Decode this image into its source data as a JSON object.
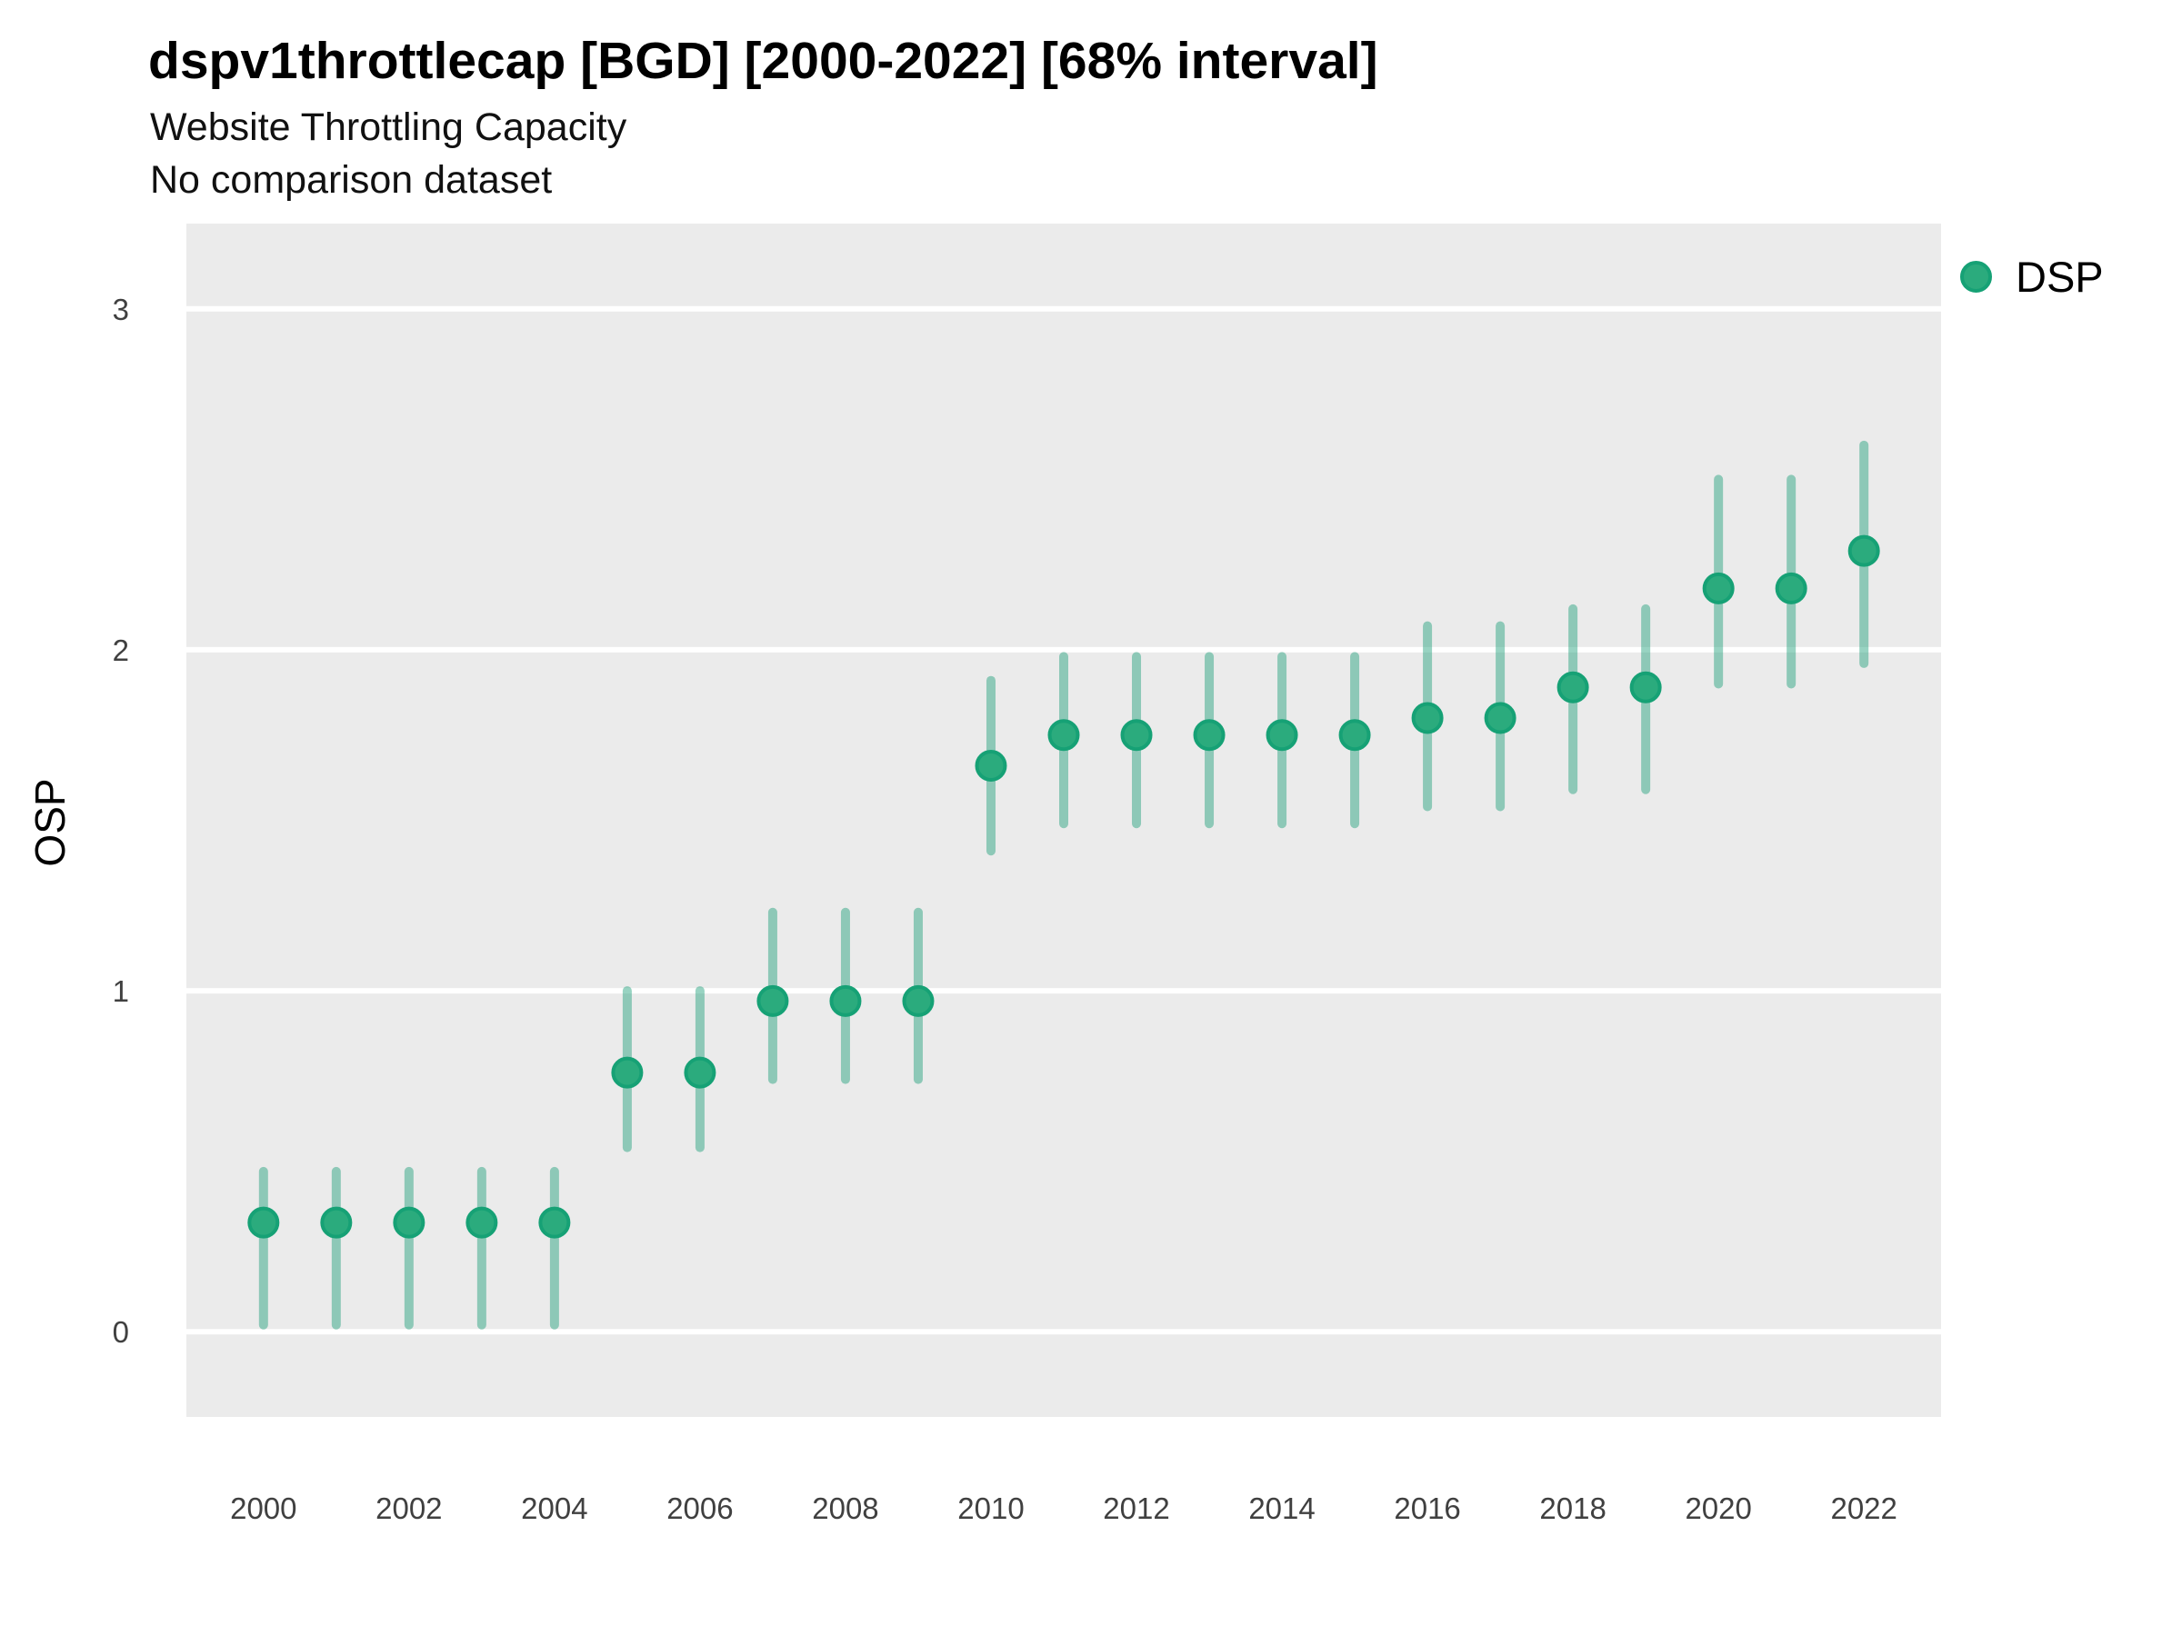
{
  "header": {
    "title": "dspv1throttlecap [BGD] [2000-2022] [68% interval]",
    "subtitle": "Website Throttling Capacity",
    "note": "No comparison dataset"
  },
  "axes": {
    "y_title": "OSP",
    "y_ticks": [
      0,
      1,
      2,
      3
    ],
    "x_ticks": [
      2000,
      2002,
      2004,
      2006,
      2008,
      2010,
      2012,
      2014,
      2016,
      2018,
      2020,
      2022
    ]
  },
  "legend": {
    "items": [
      {
        "label": "DSP",
        "color": "#2bab7d"
      }
    ]
  },
  "colors": {
    "panel_bg": "#ebebeb",
    "gridline": "#ffffff",
    "point_fill": "#2bab7d",
    "point_stroke": "#16a175",
    "interval_bar": "rgba(27,158,119,0.45)",
    "tick_label": "#404040"
  },
  "chart_data": {
    "type": "scatter",
    "title": "dspv1throttlecap [BGD] [2000-2022] [68% interval]",
    "subtitle": "Website Throttling Capacity",
    "note": "No comparison dataset",
    "xlabel": "",
    "ylabel": "OSP",
    "interval": "68%",
    "legend_position": "right",
    "grid": "horizontal-major-only",
    "xlim": [
      1998.94,
      2023.06
    ],
    "ylim": [
      -0.25,
      3.25
    ],
    "series": [
      {
        "name": "DSP",
        "x": [
          2000,
          2001,
          2002,
          2003,
          2004,
          2005,
          2006,
          2007,
          2008,
          2009,
          2010,
          2011,
          2012,
          2013,
          2014,
          2015,
          2016,
          2017,
          2018,
          2019,
          2020,
          2021,
          2022
        ],
        "y": [
          0.32,
          0.32,
          0.32,
          0.32,
          0.32,
          0.76,
          0.76,
          0.97,
          0.97,
          0.97,
          1.66,
          1.75,
          1.75,
          1.75,
          1.75,
          1.75,
          1.8,
          1.8,
          1.89,
          1.89,
          2.18,
          2.18,
          2.29
        ],
        "y_lo": [
          0.02,
          0.02,
          0.02,
          0.02,
          0.02,
          0.54,
          0.54,
          0.74,
          0.74,
          0.74,
          1.41,
          1.49,
          1.49,
          1.49,
          1.49,
          1.49,
          1.54,
          1.54,
          1.59,
          1.59,
          1.9,
          1.9,
          1.96
        ],
        "y_hi": [
          0.47,
          0.47,
          0.47,
          0.47,
          0.47,
          1.0,
          1.0,
          1.23,
          1.23,
          1.23,
          1.91,
          1.98,
          1.98,
          1.98,
          1.98,
          1.98,
          2.07,
          2.07,
          2.12,
          2.12,
          2.5,
          2.5,
          2.6
        ]
      }
    ]
  }
}
